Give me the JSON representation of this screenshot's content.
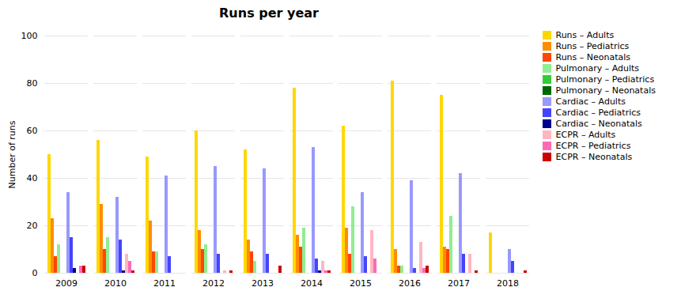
{
  "chart_data": {
    "type": "bar",
    "title": "Runs per year",
    "ylabel": "Number of runs",
    "categories": [
      "2009",
      "2010",
      "2011",
      "2012",
      "2013",
      "2014",
      "2015",
      "2016",
      "2017",
      "2018"
    ],
    "series": [
      {
        "name": "Runs – Adults",
        "color": "#FFD700",
        "values": [
          50,
          56,
          49,
          60,
          52,
          78,
          62,
          81,
          75,
          17
        ]
      },
      {
        "name": "Runs – Pediatrics",
        "color": "#FF8C00",
        "values": [
          23,
          29,
          22,
          18,
          14,
          16,
          19,
          10,
          11,
          0
        ]
      },
      {
        "name": "Runs – Neonatals",
        "color": "#FF4500",
        "values": [
          7,
          10,
          9,
          10,
          9,
          11,
          8,
          3,
          10,
          0
        ]
      },
      {
        "name": "Pulmonary – Adults",
        "color": "#90EE90",
        "values": [
          12,
          15,
          9,
          12,
          5,
          19,
          28,
          3,
          24,
          0
        ]
      },
      {
        "name": "Pulmonary – Pediatrics",
        "color": "#32CD32",
        "values": [
          0,
          0,
          0,
          0,
          0,
          0,
          0,
          0,
          0,
          0
        ]
      },
      {
        "name": "Pulmonary – Neonatals",
        "color": "#006400",
        "values": [
          0,
          0,
          0,
          0,
          0,
          0,
          0,
          0,
          0,
          0
        ]
      },
      {
        "name": "Cardiac – Adults",
        "color": "#9999FF",
        "values": [
          34,
          32,
          41,
          45,
          44,
          53,
          34,
          39,
          42,
          10
        ]
      },
      {
        "name": "Cardiac – Pediatrics",
        "color": "#4444FF",
        "values": [
          15,
          14,
          7,
          8,
          8,
          6,
          7,
          2,
          8,
          5
        ]
      },
      {
        "name": "Cardiac – Neonatals",
        "color": "#00008B",
        "values": [
          2,
          1,
          0,
          0,
          0,
          1,
          0,
          0,
          0,
          0
        ]
      },
      {
        "name": "ECPR – Adults",
        "color": "#FFB6C1",
        "values": [
          0,
          8,
          0,
          1,
          0,
          5,
          18,
          13,
          8,
          0
        ]
      },
      {
        "name": "ECPR – Pediatrics",
        "color": "#FF69B4",
        "values": [
          3,
          5,
          0,
          0,
          0,
          1,
          6,
          2,
          0,
          0
        ]
      },
      {
        "name": "ECPR – Neonatals",
        "color": "#CC0000",
        "values": [
          3,
          1,
          0,
          1,
          3,
          1,
          0,
          3,
          1,
          1
        ]
      }
    ],
    "ylim": [
      0,
      100
    ],
    "yticks": [
      0,
      20,
      40,
      60,
      80,
      100
    ],
    "grid": true,
    "legend": "right"
  }
}
